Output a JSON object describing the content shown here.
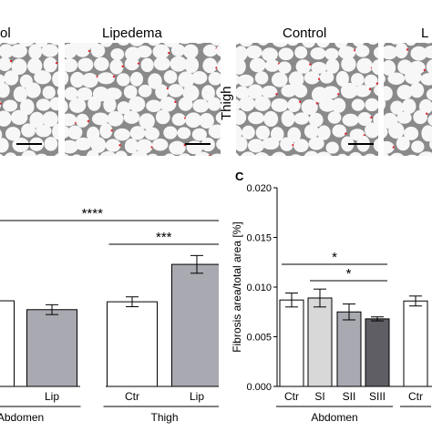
{
  "top_panels": {
    "left_group": [
      {
        "title": "ol"
      },
      {
        "title": "Lipedema"
      }
    ],
    "right_group": {
      "row_label": "Thigh",
      "panels": [
        {
          "title": "Control"
        },
        {
          "title": "L"
        }
      ]
    }
  },
  "panel_c_letter": "C",
  "chart_data": [
    {
      "type": "bar",
      "title": "",
      "ylabel": "",
      "ylim": [
        0,
        0.02
      ],
      "categories": [
        "Ctr",
        "Lip",
        "Ctr",
        "Lip"
      ],
      "groups": [
        {
          "name": "Abdomen",
          "categories": [
            "Ctr",
            "Lip"
          ]
        },
        {
          "name": "Thigh",
          "categories": [
            "Ctr",
            "Lip"
          ]
        }
      ],
      "values": [
        0.0087,
        0.0078,
        0.0086,
        0.0124
      ],
      "errors": [
        0.0006,
        0.0005,
        0.0005,
        0.0009
      ],
      "bar_colors": [
        "#ffffff",
        "#a9a9b1",
        "#ffffff",
        "#a9a9b1"
      ],
      "significance": [
        {
          "label": "****",
          "from": 0,
          "to": 3
        },
        {
          "label": "***",
          "from": 2,
          "to": 3
        }
      ]
    },
    {
      "type": "bar",
      "title": "",
      "ylabel": "Fibrosis area/total area [%]",
      "ylim": [
        0,
        0.02
      ],
      "yticks": [
        "0.000",
        "0.005",
        "0.010",
        "0.015",
        "0.020"
      ],
      "categories": [
        "Ctr",
        "SI",
        "SII",
        "SIII",
        "Ctr"
      ],
      "groups": [
        {
          "name": "Abdomen",
          "categories": [
            "Ctr",
            "SI",
            "SII",
            "SIII"
          ]
        },
        {
          "name": "",
          "categories": [
            "Ctr"
          ]
        }
      ],
      "values": [
        0.0087,
        0.0089,
        0.0075,
        0.0068,
        0.0086
      ],
      "errors": [
        0.0007,
        0.0009,
        0.0008,
        0.0002,
        0.0005
      ],
      "bar_colors": [
        "#ffffff",
        "#d8d8d8",
        "#a9a9b1",
        "#5e5e64",
        "#ffffff"
      ],
      "significance": [
        {
          "label": "*",
          "from": 0,
          "to": 3
        },
        {
          "label": "*",
          "from": 1,
          "to": 3
        }
      ]
    }
  ]
}
